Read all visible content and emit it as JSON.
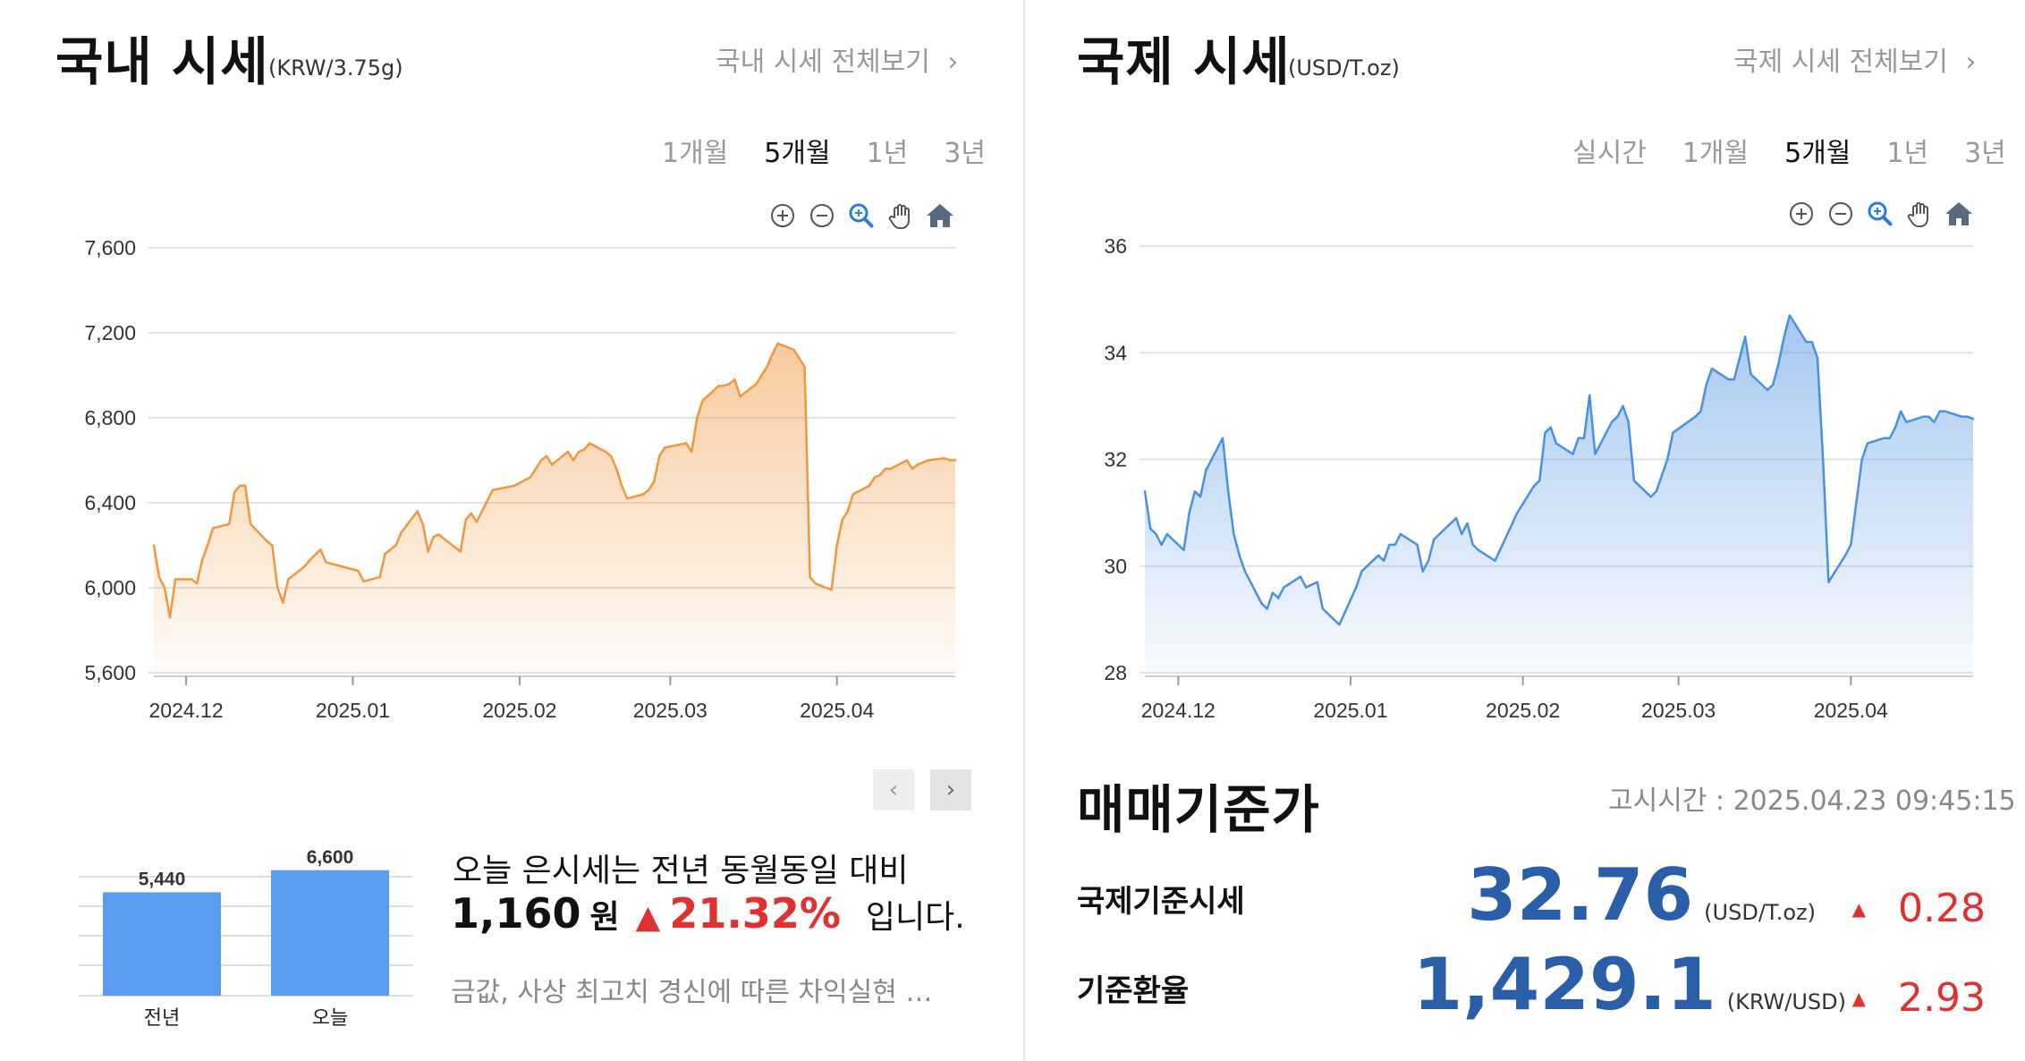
{
  "domestic": {
    "title": "국내 시세",
    "unit": "(KRW/3.75g)",
    "view_all": "국내 시세 전체보기",
    "periods": [
      "1개월",
      "5개월",
      "1년",
      "3년"
    ],
    "active_period": "5개월",
    "tools": [
      "zoom-in-icon",
      "zoom-out-icon",
      "magnify-icon",
      "pan-hand-icon",
      "home-icon"
    ]
  },
  "international": {
    "title": "국제 시세",
    "unit": "(USD/T.oz)",
    "view_all": "국제 시세 전체보기",
    "periods": [
      "실시간",
      "1개월",
      "5개월",
      "1년",
      "3년"
    ],
    "active_period": "5개월",
    "tools": [
      "zoom-in-icon",
      "zoom-out-icon",
      "magnify-icon",
      "pan-hand-icon",
      "home-icon"
    ]
  },
  "comparison": {
    "line1": "오늘 은시세는 전년 동월동일 대비",
    "amount": "1,160",
    "won": "원",
    "arrow": "▲",
    "percent": "21.32%",
    "tail": "입니다.",
    "news": "금값, 사상 최고치 경신에 따른 차익실현 …"
  },
  "standard": {
    "title": "매매기준가",
    "notice": "고시시간 : 2025.04.23 09:45:15",
    "rows": [
      {
        "label": "국제기준시세",
        "value": "32.76",
        "unit": "(USD/T.oz)",
        "arrow": "▲",
        "change": "0.28"
      },
      {
        "label": "기준환율",
        "value": "1,429.1",
        "unit": "(KRW/USD)",
        "arrow": "▲",
        "change": "2.93"
      }
    ]
  },
  "colors": {
    "domestic_line": "#f0963c",
    "international_line": "#4a90e2",
    "bar_fill": "#5a9cf0",
    "value_blue": "#2b5ea8",
    "up_red": "#e03030"
  },
  "chart_data": [
    {
      "type": "area",
      "x_ticks": [
        "2024.12",
        "2025.01",
        "2025.02",
        "2025.03",
        "2025.04"
      ],
      "y_ticks": [
        "7,600",
        "7,200",
        "6,800",
        "6,400",
        "6,000",
        "5,600"
      ],
      "ylim": [
        5600,
        7600
      ],
      "xlim": [
        "2024-11-25",
        "2025-04-23"
      ],
      "series": [
        {
          "x": [
            "2024-11-25",
            "2024-11-26",
            "2024-11-27",
            "2024-11-28",
            "2024-11-29",
            "2024-12-02",
            "2024-12-03",
            "2024-12-04",
            "2024-12-05",
            "2024-12-06",
            "2024-12-09",
            "2024-12-10",
            "2024-12-11",
            "2024-12-12",
            "2024-12-13",
            "2024-12-16",
            "2024-12-17",
            "2024-12-18",
            "2024-12-19",
            "2024-12-20",
            "2024-12-23",
            "2024-12-24",
            "2024-12-26",
            "2024-12-27",
            "2024-12-30",
            "2025-01-02",
            "2025-01-03",
            "2025-01-06",
            "2025-01-07",
            "2025-01-08",
            "2025-01-09",
            "2025-01-10",
            "2025-01-13",
            "2025-01-14",
            "2025-01-15",
            "2025-01-16",
            "2025-01-17",
            "2025-01-20",
            "2025-01-21",
            "2025-01-22",
            "2025-01-23",
            "2025-01-24",
            "2025-01-27",
            "2025-01-31",
            "2025-02-03",
            "2025-02-04",
            "2025-02-05",
            "2025-02-06",
            "2025-02-07",
            "2025-02-10",
            "2025-02-11",
            "2025-02-12",
            "2025-02-13",
            "2025-02-14",
            "2025-02-17",
            "2025-02-18",
            "2025-02-19",
            "2025-02-20",
            "2025-02-21",
            "2025-02-24",
            "2025-02-25",
            "2025-02-26",
            "2025-02-27",
            "2025-02-28",
            "2025-03-04",
            "2025-03-05",
            "2025-03-06",
            "2025-03-07",
            "2025-03-10",
            "2025-03-11",
            "2025-03-12",
            "2025-03-13",
            "2025-03-14",
            "2025-03-17",
            "2025-03-18",
            "2025-03-19",
            "2025-03-20",
            "2025-03-21",
            "2025-03-24",
            "2025-03-25",
            "2025-03-26",
            "2025-03-27",
            "2025-03-28",
            "2025-03-31",
            "2025-04-01",
            "2025-04-02",
            "2025-04-03",
            "2025-04-04",
            "2025-04-07",
            "2025-04-08",
            "2025-04-09",
            "2025-04-10",
            "2025-04-11",
            "2025-04-14",
            "2025-04-15",
            "2025-04-16",
            "2025-04-17",
            "2025-04-18",
            "2025-04-21",
            "2025-04-22",
            "2025-04-23"
          ],
          "values": [
            6200,
            6050,
            6000,
            5860,
            6040,
            6040,
            6020,
            6130,
            6200,
            6280,
            6300,
            6450,
            6480,
            6480,
            6300,
            6220,
            6200,
            6000,
            5930,
            6040,
            6100,
            6130,
            6180,
            6120,
            6100,
            6080,
            6030,
            6050,
            6160,
            6180,
            6200,
            6260,
            6360,
            6300,
            6170,
            6240,
            6250,
            6190,
            6170,
            6320,
            6350,
            6310,
            6460,
            6480,
            6520,
            6560,
            6600,
            6620,
            6580,
            6640,
            6600,
            6640,
            6650,
            6680,
            6640,
            6620,
            6560,
            6480,
            6420,
            6440,
            6460,
            6500,
            6620,
            6660,
            6680,
            6640,
            6800,
            6880,
            6950,
            6950,
            6960,
            6980,
            6900,
            6960,
            7000,
            7040,
            7100,
            7150,
            7120,
            7080,
            7040,
            6050,
            6020,
            5990,
            6200,
            6320,
            6360,
            6440,
            6480,
            6520,
            6530,
            6560,
            6560,
            6600,
            6560,
            6580,
            6590,
            6600,
            6610,
            6600,
            6600
          ]
        }
      ]
    },
    {
      "type": "area",
      "x_ticks": [
        "2024.12",
        "2025.01",
        "2025.02",
        "2025.03",
        "2025.04"
      ],
      "y_ticks": [
        "36",
        "34",
        "32",
        "30",
        "28"
      ],
      "ylim": [
        28,
        36
      ],
      "xlim": [
        "2024-11-25",
        "2025-04-23"
      ],
      "series": [
        {
          "x": [
            "2024-11-25",
            "2024-11-26",
            "2024-11-27",
            "2024-11-28",
            "2024-11-29",
            "2024-12-02",
            "2024-12-03",
            "2024-12-04",
            "2024-12-05",
            "2024-12-06",
            "2024-12-09",
            "2024-12-10",
            "2024-12-11",
            "2024-12-12",
            "2024-12-13",
            "2024-12-16",
            "2024-12-17",
            "2024-12-18",
            "2024-12-19",
            "2024-12-20",
            "2024-12-23",
            "2024-12-24",
            "2024-12-26",
            "2024-12-27",
            "2024-12-30",
            "2025-01-02",
            "2025-01-03",
            "2025-01-06",
            "2025-01-07",
            "2025-01-08",
            "2025-01-09",
            "2025-01-10",
            "2025-01-13",
            "2025-01-14",
            "2025-01-15",
            "2025-01-16",
            "2025-01-17",
            "2025-01-20",
            "2025-01-21",
            "2025-01-22",
            "2025-01-23",
            "2025-01-24",
            "2025-01-27",
            "2025-01-31",
            "2025-02-03",
            "2025-02-04",
            "2025-02-05",
            "2025-02-06",
            "2025-02-07",
            "2025-02-10",
            "2025-02-11",
            "2025-02-12",
            "2025-02-13",
            "2025-02-14",
            "2025-02-17",
            "2025-02-18",
            "2025-02-19",
            "2025-02-20",
            "2025-02-21",
            "2025-02-24",
            "2025-02-25",
            "2025-02-26",
            "2025-02-27",
            "2025-02-28",
            "2025-03-04",
            "2025-03-05",
            "2025-03-06",
            "2025-03-07",
            "2025-03-10",
            "2025-03-11",
            "2025-03-12",
            "2025-03-13",
            "2025-03-14",
            "2025-03-17",
            "2025-03-18",
            "2025-03-19",
            "2025-03-20",
            "2025-03-21",
            "2025-03-24",
            "2025-03-25",
            "2025-03-26",
            "2025-03-27",
            "2025-03-28",
            "2025-03-31",
            "2025-04-01",
            "2025-04-02",
            "2025-04-03",
            "2025-04-04",
            "2025-04-07",
            "2025-04-08",
            "2025-04-09",
            "2025-04-10",
            "2025-04-11",
            "2025-04-14",
            "2025-04-15",
            "2025-04-16",
            "2025-04-17",
            "2025-04-18",
            "2025-04-21",
            "2025-04-22",
            "2025-04-23"
          ],
          "values": [
            31.4,
            30.7,
            30.6,
            30.4,
            30.6,
            30.3,
            31.0,
            31.4,
            31.3,
            31.8,
            32.4,
            31.4,
            30.6,
            30.2,
            29.9,
            29.3,
            29.2,
            29.5,
            29.4,
            29.6,
            29.8,
            29.6,
            29.7,
            29.2,
            28.9,
            29.6,
            29.9,
            30.2,
            30.1,
            30.4,
            30.4,
            30.6,
            30.4,
            29.9,
            30.1,
            30.5,
            30.6,
            30.9,
            30.6,
            30.8,
            30.4,
            30.3,
            30.1,
            31.0,
            31.5,
            31.6,
            32.5,
            32.6,
            32.3,
            32.1,
            32.4,
            32.4,
            33.2,
            32.1,
            32.7,
            32.8,
            33.0,
            32.7,
            31.6,
            31.3,
            31.4,
            31.7,
            32.0,
            32.5,
            32.8,
            32.9,
            33.4,
            33.7,
            33.5,
            33.5,
            33.9,
            34.3,
            33.6,
            33.3,
            33.4,
            33.8,
            34.3,
            34.7,
            34.2,
            34.2,
            33.9,
            32.0,
            29.7,
            30.2,
            30.4,
            31.2,
            32.0,
            32.3,
            32.4,
            32.4,
            32.6,
            32.9,
            32.7,
            32.8,
            32.8,
            32.7,
            32.9,
            32.9,
            32.8,
            32.8,
            32.76
          ]
        }
      ]
    },
    {
      "type": "bar",
      "categories": [
        "전년",
        "오늘"
      ],
      "values": [
        5440,
        6600
      ],
      "value_labels": [
        "5,440",
        "6,600"
      ],
      "ylim": [
        0,
        7200
      ]
    }
  ]
}
